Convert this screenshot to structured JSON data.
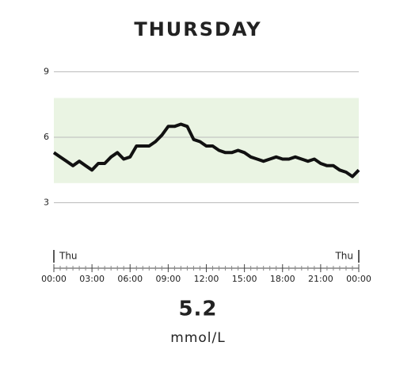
{
  "chart_data": {
    "type": "line",
    "title": "THURSDAY",
    "x": [
      0,
      0.5,
      1,
      1.5,
      2,
      2.5,
      3,
      3.5,
      4,
      4.5,
      5,
      5.5,
      6,
      6.5,
      7,
      7.5,
      8,
      8.5,
      9,
      9.5,
      10,
      10.5,
      11,
      11.5,
      12,
      12.5,
      13,
      13.5,
      14,
      14.5,
      15,
      15.5,
      16,
      16.5,
      17,
      17.5,
      18,
      18.5,
      19,
      19.5,
      20,
      20.5,
      21,
      21.5,
      22,
      22.5,
      23,
      23.5,
      24
    ],
    "series": [
      {
        "color": "#111111",
        "values": [
          5.3,
          5.1,
          4.9,
          4.7,
          4.9,
          4.7,
          4.5,
          4.8,
          4.8,
          5.1,
          5.3,
          5.0,
          5.1,
          5.6,
          5.6,
          5.6,
          5.8,
          6.1,
          6.5,
          6.5,
          6.6,
          6.5,
          5.9,
          5.8,
          5.6,
          5.6,
          5.4,
          5.3,
          5.3,
          5.4,
          5.3,
          5.1,
          5.0,
          4.9,
          5.0,
          5.1,
          5.0,
          5.0,
          5.1,
          5.0,
          4.9,
          5.0,
          4.8,
          4.7,
          4.7,
          4.5,
          4.4,
          4.2,
          4.5
        ]
      }
    ],
    "xlim": [
      0,
      24
    ],
    "xticks": [
      {
        "value": 0,
        "label": "00:00"
      },
      {
        "value": 3,
        "label": "03:00"
      },
      {
        "value": 6,
        "label": "06:00"
      },
      {
        "value": 9,
        "label": "09:00"
      },
      {
        "value": 12,
        "label": "12:00"
      },
      {
        "value": 15,
        "label": "15:00"
      },
      {
        "value": 18,
        "label": "18:00"
      },
      {
        "value": 21,
        "label": "21:00"
      },
      {
        "value": 24,
        "label": "00:00"
      }
    ],
    "ylim": [
      0,
      9
    ],
    "yticks": [
      3,
      6,
      9
    ],
    "grid": true,
    "target_range": {
      "low": 3.9,
      "high": 7.8,
      "color": "#eaf4e3"
    },
    "day_markers": [
      {
        "x": 0,
        "label": "Thu"
      },
      {
        "x": 24,
        "label": "Thu"
      }
    ],
    "current_value": 5.2,
    "unit": "mmol/L"
  }
}
